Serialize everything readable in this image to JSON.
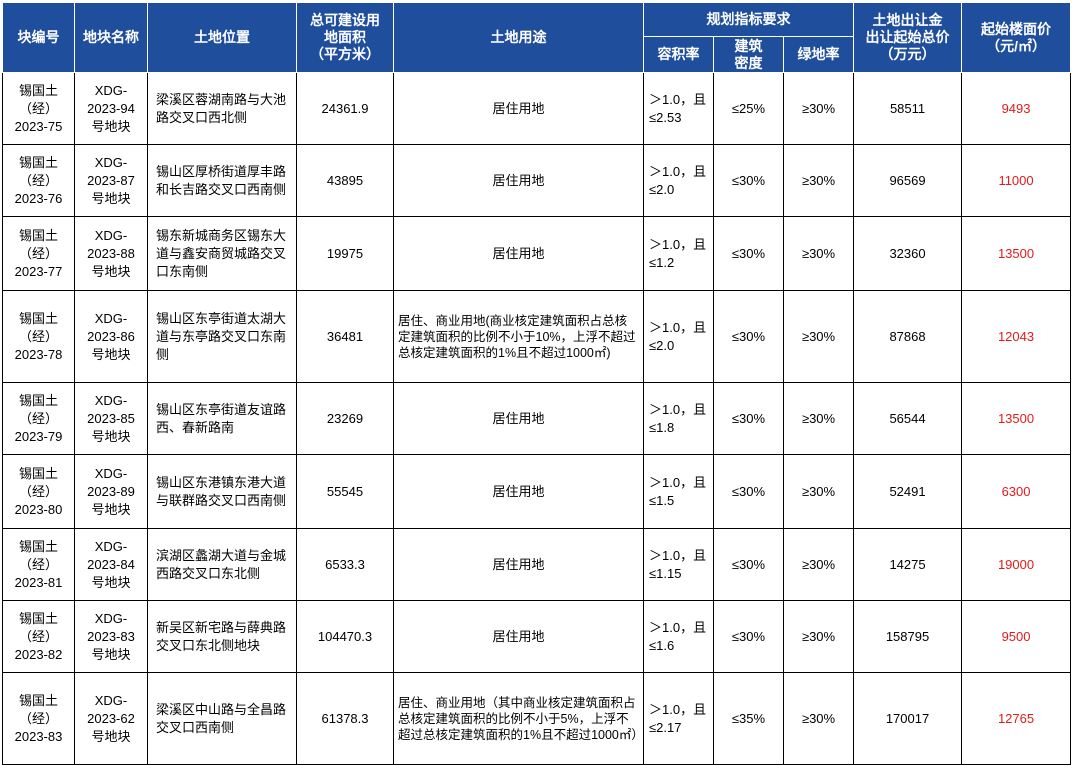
{
  "headers": {
    "block_no": "块编号",
    "plot_name": "地块名称",
    "location": "土地位置",
    "area": "总可建设用\n地面积\n（平方米）",
    "use": "土地用途",
    "planning": "规划指标要求",
    "far": "容积率",
    "density": "建筑\n密度",
    "green": "绿地率",
    "total_price": "土地出让金\n出让起始总价\n（万元）",
    "floor_price": "起始楼面价\n（元/㎡）"
  },
  "rows": [
    {
      "block": "锡国土\n（经）\n2023-75",
      "plot": "XDG-\n2023-94\n号地块",
      "location": "梁溪区蓉湖南路与大池路交叉口西北侧",
      "area": "24361.9",
      "use": "居住用地",
      "far": "＞1.0，且\n≤2.53",
      "density": "≤25%",
      "green": "≥30%",
      "total": "58511",
      "floor_price": "9493"
    },
    {
      "block": "锡国土\n（经）\n2023-76",
      "plot": "XDG-\n2023-87\n号地块",
      "location": "锡山区厚桥街道厚丰路和长吉路交叉口西南侧",
      "area": "43895",
      "use": "居住用地",
      "far": "＞1.0，且\n≤2.0",
      "density": "≤30%",
      "green": "≥30%",
      "total": "96569",
      "floor_price": "11000"
    },
    {
      "block": "锡国土\n（经）\n2023-77",
      "plot": "XDG-\n2023-88\n号地块",
      "location": "锡东新城商务区锡东大道与鑫安商贸城路交叉口东南侧",
      "area": "19975",
      "use": "居住用地",
      "far": "＞1.0，且\n≤1.2",
      "density": "≤30%",
      "green": "≥30%",
      "total": "32360",
      "floor_price": "13500"
    },
    {
      "block": "锡国土\n（经）\n2023-78",
      "plot": "XDG-\n2023-86\n号地块",
      "location": "锡山区东亭街道太湖大道与东亭路交叉口东南侧",
      "area": "36481",
      "use": "居住、商业用地(商业核定建筑面积占总核定建筑面积的比例不小于10%，上浮不超过总核定建筑面积的1%且不超过1000㎡)",
      "far": "＞1.0，且\n≤2.0",
      "density": "≤30%",
      "green": "≥30%",
      "total": "87868",
      "floor_price": "12043"
    },
    {
      "block": "锡国土\n（经）\n2023-79",
      "plot": "XDG-\n2023-85\n号地块",
      "location": "锡山区东亭街道友谊路西、春新路南",
      "area": "23269",
      "use": "居住用地",
      "far": "＞1.0，且\n≤1.8",
      "density": "≤30%",
      "green": "≥30%",
      "total": "56544",
      "floor_price": "13500"
    },
    {
      "block": "锡国土\n（经）\n2023-80",
      "plot": "XDG-\n2023-89\n号地块",
      "location": "锡山区东港镇东港大道与联群路交叉口西南侧",
      "area": "55545",
      "use": "居住用地",
      "far": "＞1.0，且\n≤1.5",
      "density": "≤30%",
      "green": "≥30%",
      "total": "52491",
      "floor_price": "6300"
    },
    {
      "block": "锡国土\n（经）\n2023-81",
      "plot": "XDG-\n2023-84\n号地块",
      "location": "滨湖区蠡湖大道与金城西路交叉口东北侧",
      "area": "6533.3",
      "use": "居住用地",
      "far": "＞1.0，且\n≤1.15",
      "density": "≤30%",
      "green": "≥30%",
      "total": "14275",
      "floor_price": "19000"
    },
    {
      "block": "锡国土\n（经）\n2023-82",
      "plot": "XDG-\n2023-83\n号地块",
      "location": "新吴区新宅路与薛典路交叉口东北侧地块",
      "area": "104470.3",
      "use": "居住用地",
      "far": "＞1.0，且\n≤1.6",
      "density": "≤30%",
      "green": "≥30%",
      "total": "158795",
      "floor_price": "9500"
    },
    {
      "block": "锡国土\n（经）\n2023-83",
      "plot": "XDG-\n2023-62\n号地块",
      "location": "梁溪区中山路与全昌路交叉口西南侧",
      "area": "61378.3",
      "use": "居住、商业用地（其中商业核定建筑面积占总核定建筑面积的比例不小于5%，上浮不超过总核定建筑面积的1%且不超过1000㎡）",
      "far": "＞1.0，且\n≤2.17",
      "density": "≤35%",
      "green": "≥30%",
      "total": "170017",
      "floor_price": "12765"
    }
  ],
  "colors": {
    "header_bg": "#1f4e9c",
    "header_text": "#ffffff",
    "floor_price_text": "#e31a1a"
  }
}
